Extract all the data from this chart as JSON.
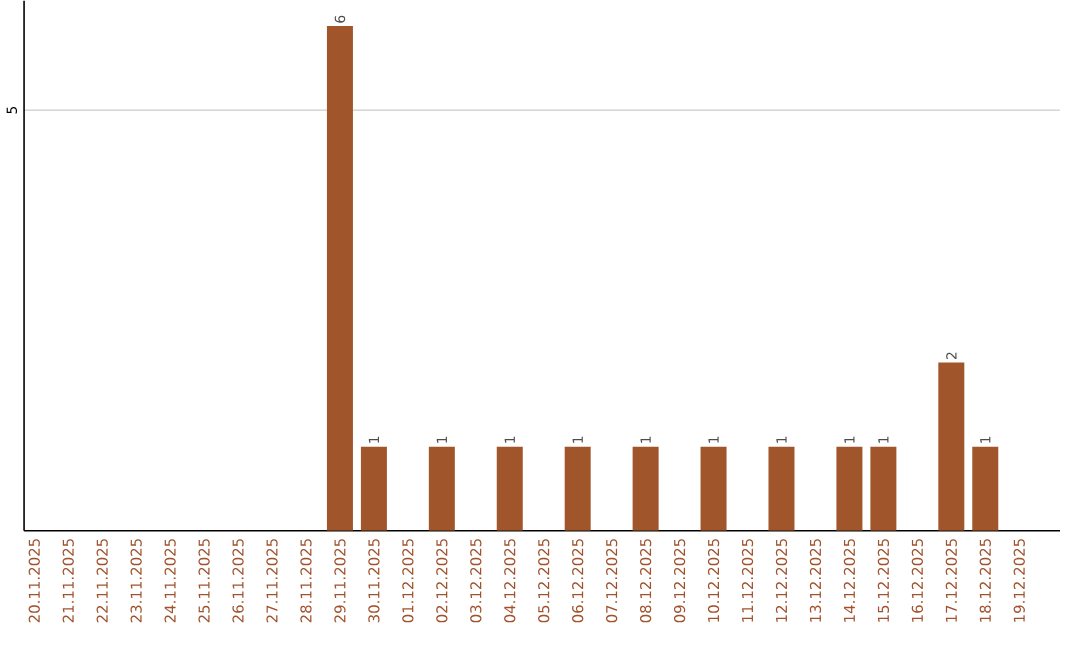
{
  "chart_data": {
    "type": "bar",
    "categories": [
      "20.11.2025",
      "21.11.2025",
      "22.11.2025",
      "23.11.2025",
      "24.11.2025",
      "25.11.2025",
      "26.11.2025",
      "27.11.2025",
      "28.11.2025",
      "29.11.2025",
      "30.11.2025",
      "01.12.2025",
      "02.12.2025",
      "03.12.2025",
      "04.12.2025",
      "05.12.2025",
      "06.12.2025",
      "07.12.2025",
      "08.12.2025",
      "09.12.2025",
      "10.12.2025",
      "11.12.2025",
      "12.12.2025",
      "13.12.2025",
      "14.12.2025",
      "15.12.2025",
      "16.12.2025",
      "17.12.2025",
      "18.12.2025",
      "19.12.2025"
    ],
    "values": [
      0,
      0,
      0,
      0,
      0,
      0,
      0,
      0,
      0,
      6,
      1,
      0,
      1,
      0,
      1,
      0,
      1,
      0,
      1,
      0,
      1,
      0,
      1,
      0,
      1,
      1,
      0,
      2,
      1,
      0
    ],
    "value_labels": [
      null,
      null,
      null,
      null,
      null,
      null,
      null,
      null,
      null,
      "6",
      "1",
      null,
      "1",
      null,
      "1",
      null,
      "1",
      null,
      "1",
      null,
      "1",
      null,
      "1",
      null,
      "1",
      "1",
      null,
      "2",
      "1",
      null
    ],
    "color": "#a0562a",
    "ylim": [
      0,
      6.3
    ],
    "yticks": [
      5
    ],
    "grid": "y"
  }
}
